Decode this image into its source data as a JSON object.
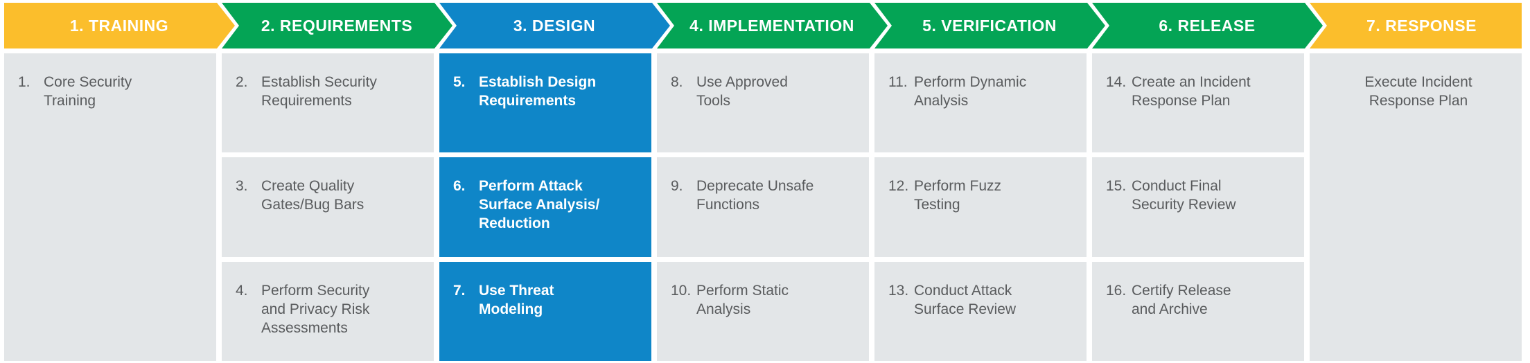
{
  "colors": {
    "amber": "#FBBE2C",
    "green": "#04A455",
    "blue": "#0F86C8",
    "cell-bg": "#E3E6E8",
    "cell-text": "#595B5D",
    "header-text": "#FFFFFF",
    "page-bg": "#FFFFFF"
  },
  "phases": [
    {
      "label": "1. TRAINING",
      "color": "amber",
      "full_height": true,
      "items": [
        {
          "num": "1.",
          "text": "Core Security\nTraining"
        }
      ]
    },
    {
      "label": "2. REQUIREMENTS",
      "color": "green",
      "items": [
        {
          "num": "2.",
          "text": "Establish Security\nRequirements"
        },
        {
          "num": "3.",
          "text": "Create Quality\nGates/Bug Bars"
        },
        {
          "num": "4.",
          "text": "Perform Security\nand Privacy Risk\nAssessments"
        }
      ]
    },
    {
      "label": "3. DESIGN",
      "color": "blue",
      "items": [
        {
          "num": "5.",
          "text": "Establish Design\nRequirements",
          "highlight": true
        },
        {
          "num": "6.",
          "text": "Perform Attack\nSurface Analysis/\nReduction",
          "highlight": true
        },
        {
          "num": "7.",
          "text": "Use Threat\nModeling",
          "highlight": true
        }
      ]
    },
    {
      "label": "4. IMPLEMENTATION",
      "color": "green",
      "items": [
        {
          "num": "8.",
          "text": "Use Approved\nTools"
        },
        {
          "num": "9.",
          "text": "Deprecate Unsafe\nFunctions"
        },
        {
          "num": "10.",
          "text": "Perform Static\nAnalysis"
        }
      ]
    },
    {
      "label": "5. VERIFICATION",
      "color": "green",
      "items": [
        {
          "num": "11.",
          "text": "Perform Dynamic\nAnalysis"
        },
        {
          "num": "12.",
          "text": "Perform Fuzz\nTesting"
        },
        {
          "num": "13.",
          "text": "Conduct Attack\nSurface Review"
        }
      ]
    },
    {
      "label": "6. RELEASE",
      "color": "green",
      "items": [
        {
          "num": "14.",
          "text": "Create an Incident\nResponse Plan"
        },
        {
          "num": "15.",
          "text": "Conduct Final\nSecurity Review"
        },
        {
          "num": "16.",
          "text": "Certify Release\nand Archive"
        }
      ]
    },
    {
      "label": "7. RESPONSE",
      "color": "amber",
      "full_height": true,
      "items": [
        {
          "text": "Execute Incident\nResponse Plan",
          "center": true
        }
      ]
    }
  ]
}
